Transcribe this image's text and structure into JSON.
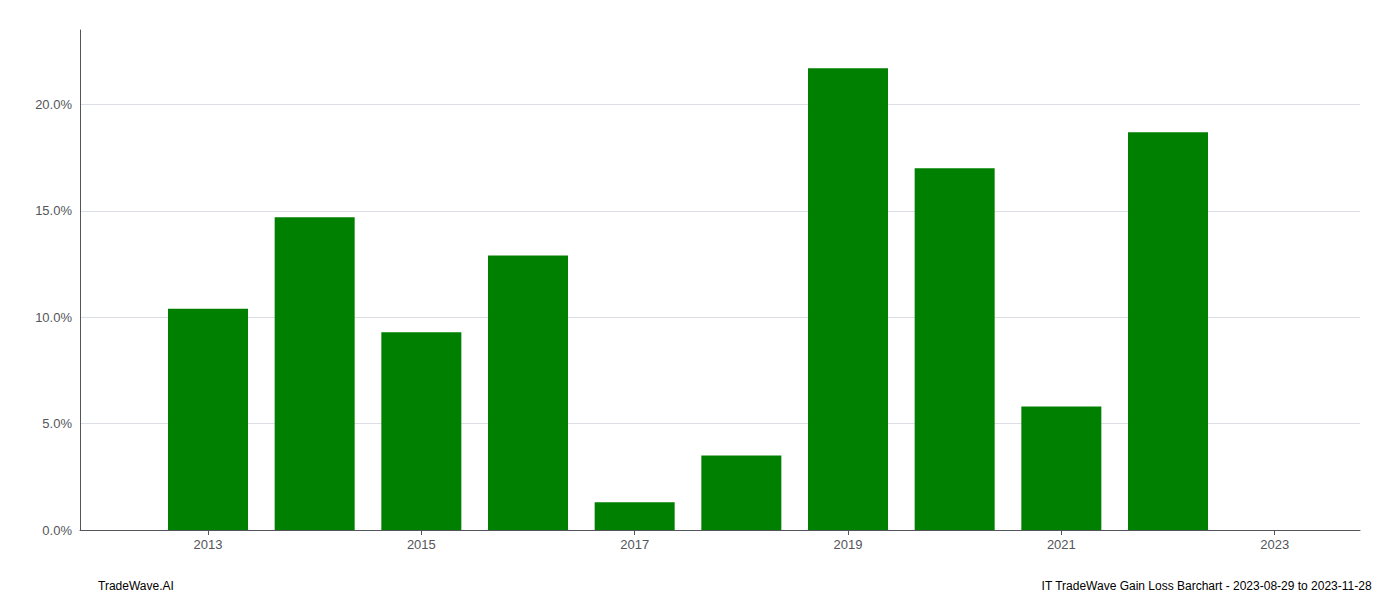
{
  "chart_data": {
    "type": "bar",
    "x": [
      2013,
      2014,
      2015,
      2016,
      2017,
      2018,
      2019,
      2020,
      2021,
      2022
    ],
    "values": [
      0.104,
      0.147,
      0.093,
      0.129,
      0.013,
      0.035,
      0.217,
      0.17,
      0.058,
      0.187
    ],
    "color": "#008000",
    "xlim": [
      2011.8,
      2023.8
    ],
    "xticks": [
      2013,
      2015,
      2017,
      2019,
      2021,
      2023
    ],
    "ylim": [
      0,
      0.235
    ],
    "yticks": [
      {
        "value": 0.0,
        "label": "0.0%"
      },
      {
        "value": 0.05,
        "label": "5.0%"
      },
      {
        "value": 0.1,
        "label": "10.0%"
      },
      {
        "value": 0.15,
        "label": "15.0%"
      },
      {
        "value": 0.2,
        "label": "20.0%"
      }
    ],
    "grid": true,
    "annotations": [
      "TradeWave.AI",
      "IT TradeWave Gain Loss Barchart - 2023-08-29 to 2023-11-28"
    ]
  }
}
